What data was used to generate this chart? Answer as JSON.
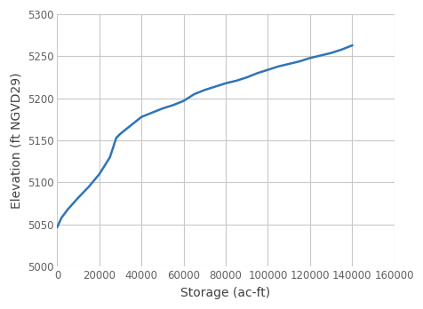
{
  "storage": [
    0,
    2000,
    5000,
    10000,
    15000,
    20000,
    25000,
    28000,
    30000,
    35000,
    40000,
    45000,
    50000,
    55000,
    60000,
    65000,
    70000,
    75000,
    80000,
    85000,
    90000,
    95000,
    100000,
    105000,
    110000,
    115000,
    120000,
    125000,
    130000,
    135000,
    140000
  ],
  "elevation": [
    5047,
    5058,
    5068,
    5082,
    5095,
    5110,
    5130,
    5153,
    5158,
    5168,
    5178,
    5183,
    5188,
    5192,
    5197,
    5205,
    5210,
    5214,
    5218,
    5221,
    5225,
    5230,
    5234,
    5238,
    5241,
    5244,
    5248,
    5251,
    5254,
    5258,
    5263
  ],
  "line_color": "#2E75B6",
  "line_width": 1.8,
  "xlabel": "Storage (ac-ft)",
  "ylabel": "Elevation (ft NGVD29)",
  "xlim": [
    0,
    160000
  ],
  "ylim": [
    5000,
    5300
  ],
  "xticks": [
    0,
    20000,
    40000,
    60000,
    80000,
    100000,
    120000,
    140000,
    160000
  ],
  "yticks": [
    5000,
    5050,
    5100,
    5150,
    5200,
    5250,
    5300
  ],
  "grid_color": "#C8C8C8",
  "background_color": "#FFFFFF",
  "tick_label_fontsize": 8.5,
  "axis_label_fontsize": 10
}
